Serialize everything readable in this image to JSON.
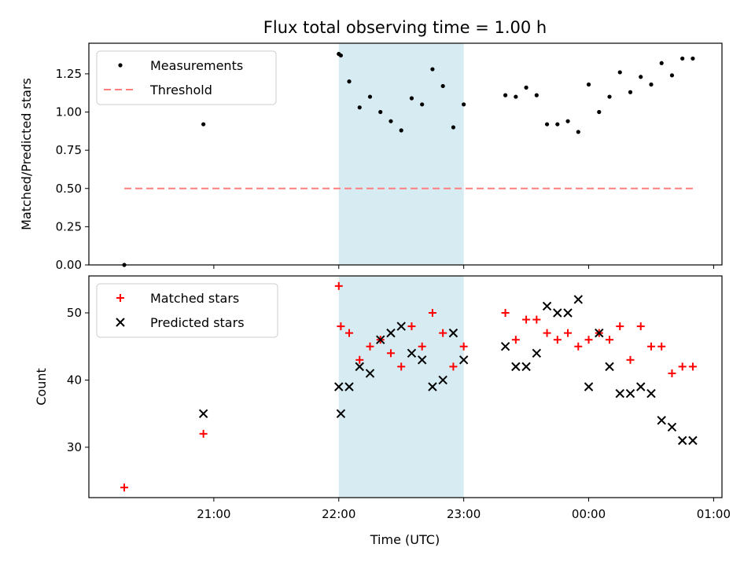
{
  "chart_data": {
    "title": "Flux total observing time = 1.00 h",
    "x_axis": {
      "label": "Time (UTC)",
      "ticks": [
        {
          "time": "21:00",
          "label": "21:00"
        },
        {
          "time": "22:00",
          "label": "22:00"
        },
        {
          "time": "23:00",
          "label": "23:00"
        },
        {
          "time": "24:00",
          "label": "00:00"
        },
        {
          "time": "25:00",
          "label": "01:00"
        }
      ],
      "range": [
        "20:00",
        "25:04"
      ]
    },
    "highlight": {
      "start": "22:00",
      "end": "23:00",
      "color": "#add8e6"
    },
    "panels": [
      {
        "type": "scatter",
        "ylabel": "Matched/Predicted stars",
        "ylim": [
          0,
          1.45
        ],
        "yticks": [
          "0.00",
          "0.25",
          "0.50",
          "0.75",
          "1.00",
          "1.25"
        ],
        "legend_position": "top-left",
        "series": [
          {
            "name": "Measurements",
            "marker": "dot",
            "color": "#000000",
            "points": [
              [
                "20:17",
                0.0
              ],
              [
                "20:55",
                0.92
              ],
              [
                "22:00",
                1.38
              ],
              [
                "22:01",
                1.37
              ],
              [
                "22:05",
                1.2
              ],
              [
                "22:10",
                1.03
              ],
              [
                "22:15",
                1.1
              ],
              [
                "22:20",
                1.0
              ],
              [
                "22:25",
                0.94
              ],
              [
                "22:30",
                0.88
              ],
              [
                "22:35",
                1.09
              ],
              [
                "22:40",
                1.05
              ],
              [
                "22:45",
                1.28
              ],
              [
                "22:50",
                1.17
              ],
              [
                "22:55",
                0.9
              ],
              [
                "23:00",
                1.05
              ],
              [
                "23:20",
                1.11
              ],
              [
                "23:25",
                1.1
              ],
              [
                "23:30",
                1.16
              ],
              [
                "23:35",
                1.11
              ],
              [
                "23:40",
                0.92
              ],
              [
                "23:45",
                0.92
              ],
              [
                "23:50",
                0.94
              ],
              [
                "23:55",
                0.87
              ],
              [
                "24:00",
                1.18
              ],
              [
                "24:05",
                1.0
              ],
              [
                "24:10",
                1.1
              ],
              [
                "24:15",
                1.26
              ],
              [
                "24:20",
                1.13
              ],
              [
                "24:25",
                1.23
              ],
              [
                "24:30",
                1.18
              ],
              [
                "24:35",
                1.32
              ],
              [
                "24:40",
                1.24
              ],
              [
                "24:45",
                1.35
              ],
              [
                "24:50",
                1.35
              ]
            ]
          },
          {
            "name": "Threshold",
            "type": "line",
            "style": "dashed",
            "color": "#ff7f7f",
            "points": [
              [
                "20:17",
                0.5
              ],
              [
                "24:50",
                0.5
              ]
            ]
          }
        ]
      },
      {
        "type": "scatter",
        "ylabel": "Count",
        "ylim": [
          22.5,
          55.5
        ],
        "yticks": [
          "30",
          "40",
          "50"
        ],
        "legend_position": "top-left",
        "series": [
          {
            "name": "Matched stars",
            "marker": "plus",
            "color": "#ff0000",
            "points": [
              [
                "20:17",
                24
              ],
              [
                "20:55",
                32
              ],
              [
                "22:00",
                54
              ],
              [
                "22:01",
                48
              ],
              [
                "22:05",
                47
              ],
              [
                "22:10",
                43
              ],
              [
                "22:15",
                45
              ],
              [
                "22:20",
                46
              ],
              [
                "22:25",
                44
              ],
              [
                "22:30",
                42
              ],
              [
                "22:35",
                48
              ],
              [
                "22:40",
                45
              ],
              [
                "22:45",
                50
              ],
              [
                "22:50",
                47
              ],
              [
                "22:55",
                42
              ],
              [
                "23:00",
                45
              ],
              [
                "23:20",
                50
              ],
              [
                "23:25",
                46
              ],
              [
                "23:30",
                49
              ],
              [
                "23:35",
                49
              ],
              [
                "23:40",
                47
              ],
              [
                "23:45",
                46
              ],
              [
                "23:50",
                47
              ],
              [
                "23:55",
                45
              ],
              [
                "24:00",
                46
              ],
              [
                "24:05",
                47
              ],
              [
                "24:10",
                46
              ],
              [
                "24:15",
                48
              ],
              [
                "24:20",
                43
              ],
              [
                "24:25",
                48
              ],
              [
                "24:30",
                45
              ],
              [
                "24:35",
                45
              ],
              [
                "24:40",
                41
              ],
              [
                "24:45",
                42
              ],
              [
                "24:50",
                42
              ]
            ]
          },
          {
            "name": "Predicted stars",
            "marker": "x",
            "color": "#000000",
            "points": [
              [
                "20:55",
                35
              ],
              [
                "22:00",
                39
              ],
              [
                "22:01",
                35
              ],
              [
                "22:05",
                39
              ],
              [
                "22:10",
                42
              ],
              [
                "22:15",
                41
              ],
              [
                "22:20",
                46
              ],
              [
                "22:25",
                47
              ],
              [
                "22:30",
                48
              ],
              [
                "22:35",
                44
              ],
              [
                "22:40",
                43
              ],
              [
                "22:45",
                39
              ],
              [
                "22:50",
                40
              ],
              [
                "22:55",
                47
              ],
              [
                "23:00",
                43
              ],
              [
                "23:20",
                45
              ],
              [
                "23:25",
                42
              ],
              [
                "23:30",
                42
              ],
              [
                "23:35",
                44
              ],
              [
                "23:40",
                51
              ],
              [
                "23:45",
                50
              ],
              [
                "23:50",
                50
              ],
              [
                "23:55",
                52
              ],
              [
                "24:00",
                39
              ],
              [
                "24:05",
                47
              ],
              [
                "24:10",
                42
              ],
              [
                "24:15",
                38
              ],
              [
                "24:20",
                38
              ],
              [
                "24:25",
                39
              ],
              [
                "24:30",
                38
              ],
              [
                "24:35",
                34
              ],
              [
                "24:40",
                33
              ],
              [
                "24:45",
                31
              ],
              [
                "24:50",
                31
              ]
            ]
          }
        ]
      }
    ]
  }
}
